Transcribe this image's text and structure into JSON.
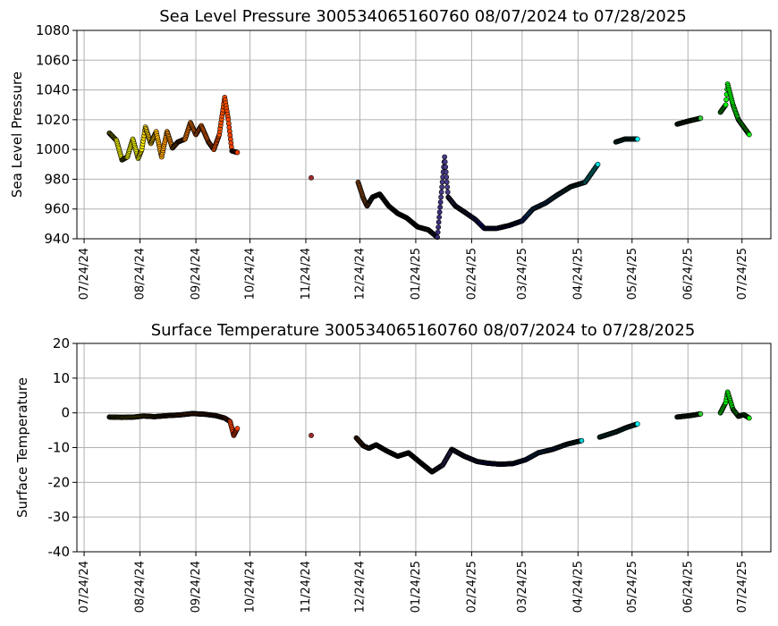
{
  "chart_data": [
    {
      "type": "scatter",
      "title": "Sea Level Pressure 300534065160760  08/07/2024 to 07/28/2025",
      "xlabel": "",
      "ylabel": "Sea Level Pressure",
      "ylim": [
        940,
        1080
      ],
      "yticks": [
        940,
        960,
        980,
        1000,
        1020,
        1040,
        1060,
        1080
      ],
      "x_ticks": [
        "07/24/24",
        "08/24/24",
        "09/24/24",
        "10/24/24",
        "11/24/24",
        "12/24/24",
        "01/24/25",
        "02/24/25",
        "03/24/25",
        "04/24/25",
        "05/24/25",
        "06/24/25",
        "07/24/25"
      ],
      "grid": true,
      "colormap_by_time": true,
      "points": [
        {
          "date": "2024-08-07",
          "y": 1011,
          "color": "#ffff00"
        },
        {
          "date": "2024-08-11",
          "y": 1006,
          "color": "#ffff00"
        },
        {
          "date": "2024-08-14",
          "y": 993,
          "color": "#ffff00"
        },
        {
          "date": "2024-08-17",
          "y": 995,
          "color": "#ffff00"
        },
        {
          "date": "2024-08-20",
          "y": 1007,
          "color": "#ffff00"
        },
        {
          "date": "2024-08-23",
          "y": 994,
          "color": "#ffff00"
        },
        {
          "date": "2024-08-25",
          "y": 1000,
          "color": "#ffee00"
        },
        {
          "date": "2024-08-27",
          "y": 1015,
          "color": "#ffdd00"
        },
        {
          "date": "2024-08-30",
          "y": 1004,
          "color": "#ffcc00"
        },
        {
          "date": "2024-09-02",
          "y": 1012,
          "color": "#ffbb00"
        },
        {
          "date": "2024-09-05",
          "y": 995,
          "color": "#ffa500"
        },
        {
          "date": "2024-09-08",
          "y": 1012,
          "color": "#ff9800"
        },
        {
          "date": "2024-09-11",
          "y": 1001,
          "color": "#ff8c00"
        },
        {
          "date": "2024-09-14",
          "y": 1005,
          "color": "#ff8000"
        },
        {
          "date": "2024-09-18",
          "y": 1007,
          "color": "#ff8000"
        },
        {
          "date": "2024-09-21",
          "y": 1018,
          "color": "#ff7800"
        },
        {
          "date": "2024-09-24",
          "y": 1010,
          "color": "#ff7000"
        },
        {
          "date": "2024-09-27",
          "y": 1016,
          "color": "#ff6a00"
        },
        {
          "date": "2024-10-01",
          "y": 1005,
          "color": "#ff6400"
        },
        {
          "date": "2024-10-04",
          "y": 1000,
          "color": "#ff5a00"
        },
        {
          "date": "2024-10-07",
          "y": 1010,
          "color": "#ff5500"
        },
        {
          "date": "2024-10-10",
          "y": 1035,
          "color": "#ff5000"
        },
        {
          "date": "2024-10-12",
          "y": 1020,
          "color": "#ff4a00"
        },
        {
          "date": "2024-10-14",
          "y": 999,
          "color": "#ff4500"
        },
        {
          "date": "2024-10-17",
          "y": 998,
          "color": "#ff4000"
        },
        {
          "date": "2024-11-27",
          "y": 981,
          "color": "#a52a2a"
        },
        {
          "date": "2024-12-23",
          "y": 978,
          "color": "#8b4513"
        },
        {
          "date": "2024-12-26",
          "y": 967,
          "color": "#8b4513"
        },
        {
          "date": "2024-12-28",
          "y": 962,
          "color": "#8b4513"
        },
        {
          "date": "2024-12-31",
          "y": 968,
          "color": "#222222"
        },
        {
          "date": "2025-01-04",
          "y": 970,
          "color": "#111111"
        },
        {
          "date": "2025-01-09",
          "y": 962,
          "color": "#000000"
        },
        {
          "date": "2025-01-14",
          "y": 957,
          "color": "#000000"
        },
        {
          "date": "2025-01-19",
          "y": 954,
          "color": "#000000"
        },
        {
          "date": "2025-01-25",
          "y": 948,
          "color": "#000000"
        },
        {
          "date": "2025-01-31",
          "y": 946,
          "color": "#222233"
        },
        {
          "date": "2025-02-05",
          "y": 941,
          "color": "#3c2f80"
        },
        {
          "date": "2025-02-09",
          "y": 995,
          "color": "#483d8b"
        },
        {
          "date": "2025-02-11",
          "y": 968,
          "color": "#483d8b"
        },
        {
          "date": "2025-02-15",
          "y": 962,
          "color": "#483d8b"
        },
        {
          "date": "2025-02-20",
          "y": 958,
          "color": "#483d8b"
        },
        {
          "date": "2025-02-26",
          "y": 953,
          "color": "#3030c0"
        },
        {
          "date": "2025-03-03",
          "y": 947,
          "color": "#0000ff"
        },
        {
          "date": "2025-03-10",
          "y": 947,
          "color": "#0000ff"
        },
        {
          "date": "2025-03-17",
          "y": 949,
          "color": "#0000ff"
        },
        {
          "date": "2025-03-24",
          "y": 952,
          "color": "#0050ff"
        },
        {
          "date": "2025-03-30",
          "y": 960,
          "color": "#1e90ff"
        },
        {
          "date": "2025-04-06",
          "y": 964,
          "color": "#1e90ff"
        },
        {
          "date": "2025-04-12",
          "y": 969,
          "color": "#40c0ff"
        },
        {
          "date": "2025-04-20",
          "y": 975,
          "color": "#00ced1"
        },
        {
          "date": "2025-04-28",
          "y": 978,
          "color": "#00ced1"
        },
        {
          "date": "2025-05-05",
          "y": 990,
          "color": "#00e5e5"
        },
        {
          "date": "2025-05-15",
          "y": 1005,
          "color": "#00ffff"
        },
        {
          "date": "2025-05-20",
          "y": 1007,
          "color": "#00ffff"
        },
        {
          "date": "2025-05-27",
          "y": 1007,
          "color": "#00ffff"
        },
        {
          "date": "2025-06-18",
          "y": 1017,
          "color": "#32cd32"
        },
        {
          "date": "2025-06-24",
          "y": 1019,
          "color": "#32cd32"
        },
        {
          "date": "2025-07-01",
          "y": 1021,
          "color": "#32cd32"
        },
        {
          "date": "2025-07-12",
          "y": 1025,
          "color": "#00ff00"
        },
        {
          "date": "2025-07-15",
          "y": 1030,
          "color": "#00ff00"
        },
        {
          "date": "2025-07-16",
          "y": 1044,
          "color": "#00ff00"
        },
        {
          "date": "2025-07-19",
          "y": 1030,
          "color": "#00ff00"
        },
        {
          "date": "2025-07-22",
          "y": 1020,
          "color": "#00ff00"
        },
        {
          "date": "2025-07-25",
          "y": 1015,
          "color": "#00ff00"
        },
        {
          "date": "2025-07-28",
          "y": 1010,
          "color": "#00ff00"
        }
      ]
    },
    {
      "type": "scatter",
      "title": "Surface Temperature 300534065160760  08/07/2024 to 07/28/2025",
      "xlabel": "",
      "ylabel": "Surface Temperature",
      "ylim": [
        -40,
        20
      ],
      "yticks": [
        -40,
        -30,
        -20,
        -10,
        0,
        10,
        20
      ],
      "x_ticks": [
        "07/24/24",
        "08/24/24",
        "09/24/24",
        "10/24/24",
        "11/24/24",
        "12/24/24",
        "01/24/25",
        "02/24/25",
        "03/24/25",
        "04/24/25",
        "05/24/25",
        "06/24/25",
        "07/24/25"
      ],
      "grid": true,
      "colormap_by_time": true,
      "points": [
        {
          "date": "2024-08-07",
          "y": -1.2,
          "color": "#ffff00"
        },
        {
          "date": "2024-08-14",
          "y": -1.3,
          "color": "#ffff00"
        },
        {
          "date": "2024-08-21",
          "y": -1.2,
          "color": "#ffff00"
        },
        {
          "date": "2024-08-26",
          "y": -0.9,
          "color": "#ffdd00"
        },
        {
          "date": "2024-09-01",
          "y": -1.1,
          "color": "#ffbb00"
        },
        {
          "date": "2024-09-08",
          "y": -0.8,
          "color": "#ff9800"
        },
        {
          "date": "2024-09-15",
          "y": -0.6,
          "color": "#ff8000"
        },
        {
          "date": "2024-09-22",
          "y": -0.2,
          "color": "#ff7800"
        },
        {
          "date": "2024-09-29",
          "y": -0.4,
          "color": "#ff6a00"
        },
        {
          "date": "2024-10-05",
          "y": -0.8,
          "color": "#ff5a00"
        },
        {
          "date": "2024-10-10",
          "y": -1.5,
          "color": "#ff5000"
        },
        {
          "date": "2024-10-13",
          "y": -2.5,
          "color": "#ff4500"
        },
        {
          "date": "2024-10-15",
          "y": -6.5,
          "color": "#ff4000"
        },
        {
          "date": "2024-10-17",
          "y": -4.5,
          "color": "#ff4000"
        },
        {
          "date": "2024-11-27",
          "y": -6.5,
          "color": "#a52a2a"
        },
        {
          "date": "2024-12-22",
          "y": -7.2,
          "color": "#8b4513"
        },
        {
          "date": "2024-12-26",
          "y": -9.5,
          "color": "#8b4513"
        },
        {
          "date": "2024-12-29",
          "y": -10.2,
          "color": "#8b4513"
        },
        {
          "date": "2025-01-02",
          "y": -9.2,
          "color": "#111111"
        },
        {
          "date": "2025-01-08",
          "y": -11.0,
          "color": "#000000"
        },
        {
          "date": "2025-01-14",
          "y": -12.5,
          "color": "#000000"
        },
        {
          "date": "2025-01-20",
          "y": -11.5,
          "color": "#000000"
        },
        {
          "date": "2025-01-27",
          "y": -14.5,
          "color": "#000000"
        },
        {
          "date": "2025-02-02",
          "y": -17.0,
          "color": "#222233"
        },
        {
          "date": "2025-02-08",
          "y": -15.0,
          "color": "#483d8b"
        },
        {
          "date": "2025-02-13",
          "y": -10.5,
          "color": "#483d8b"
        },
        {
          "date": "2025-02-20",
          "y": -12.5,
          "color": "#483d8b"
        },
        {
          "date": "2025-02-27",
          "y": -14.0,
          "color": "#3030c0"
        },
        {
          "date": "2025-03-05",
          "y": -14.5,
          "color": "#0000ff"
        },
        {
          "date": "2025-03-12",
          "y": -14.8,
          "color": "#0000ff"
        },
        {
          "date": "2025-03-19",
          "y": -14.6,
          "color": "#0000ff"
        },
        {
          "date": "2025-03-26",
          "y": -13.5,
          "color": "#0050ff"
        },
        {
          "date": "2025-04-02",
          "y": -11.5,
          "color": "#1e90ff"
        },
        {
          "date": "2025-04-10",
          "y": -10.5,
          "color": "#1e90ff"
        },
        {
          "date": "2025-04-18",
          "y": -9.0,
          "color": "#40c0ff"
        },
        {
          "date": "2025-04-26",
          "y": -8.0,
          "color": "#00ced1"
        },
        {
          "date": "2025-05-06",
          "y": -7.0,
          "color": "#00ced1"
        },
        {
          "date": "2025-05-15",
          "y": -5.5,
          "color": "#00e5e5"
        },
        {
          "date": "2025-05-21",
          "y": -4.2,
          "color": "#00ffff"
        },
        {
          "date": "2025-05-27",
          "y": -3.2,
          "color": "#00ffff"
        },
        {
          "date": "2025-06-18",
          "y": -1.2,
          "color": "#32cd32"
        },
        {
          "date": "2025-06-25",
          "y": -0.8,
          "color": "#32cd32"
        },
        {
          "date": "2025-07-01",
          "y": -0.3,
          "color": "#32cd32"
        },
        {
          "date": "2025-07-12",
          "y": 0.0,
          "color": "#00ff00"
        },
        {
          "date": "2025-07-15",
          "y": 3.0,
          "color": "#00ff00"
        },
        {
          "date": "2025-07-16",
          "y": 6.0,
          "color": "#00ff00"
        },
        {
          "date": "2025-07-19",
          "y": 1.0,
          "color": "#00ff00"
        },
        {
          "date": "2025-07-22",
          "y": -1.0,
          "color": "#00ff00"
        },
        {
          "date": "2025-07-25",
          "y": -0.5,
          "color": "#00ff00"
        },
        {
          "date": "2025-07-28",
          "y": -1.5,
          "color": "#00ff00"
        }
      ]
    }
  ]
}
